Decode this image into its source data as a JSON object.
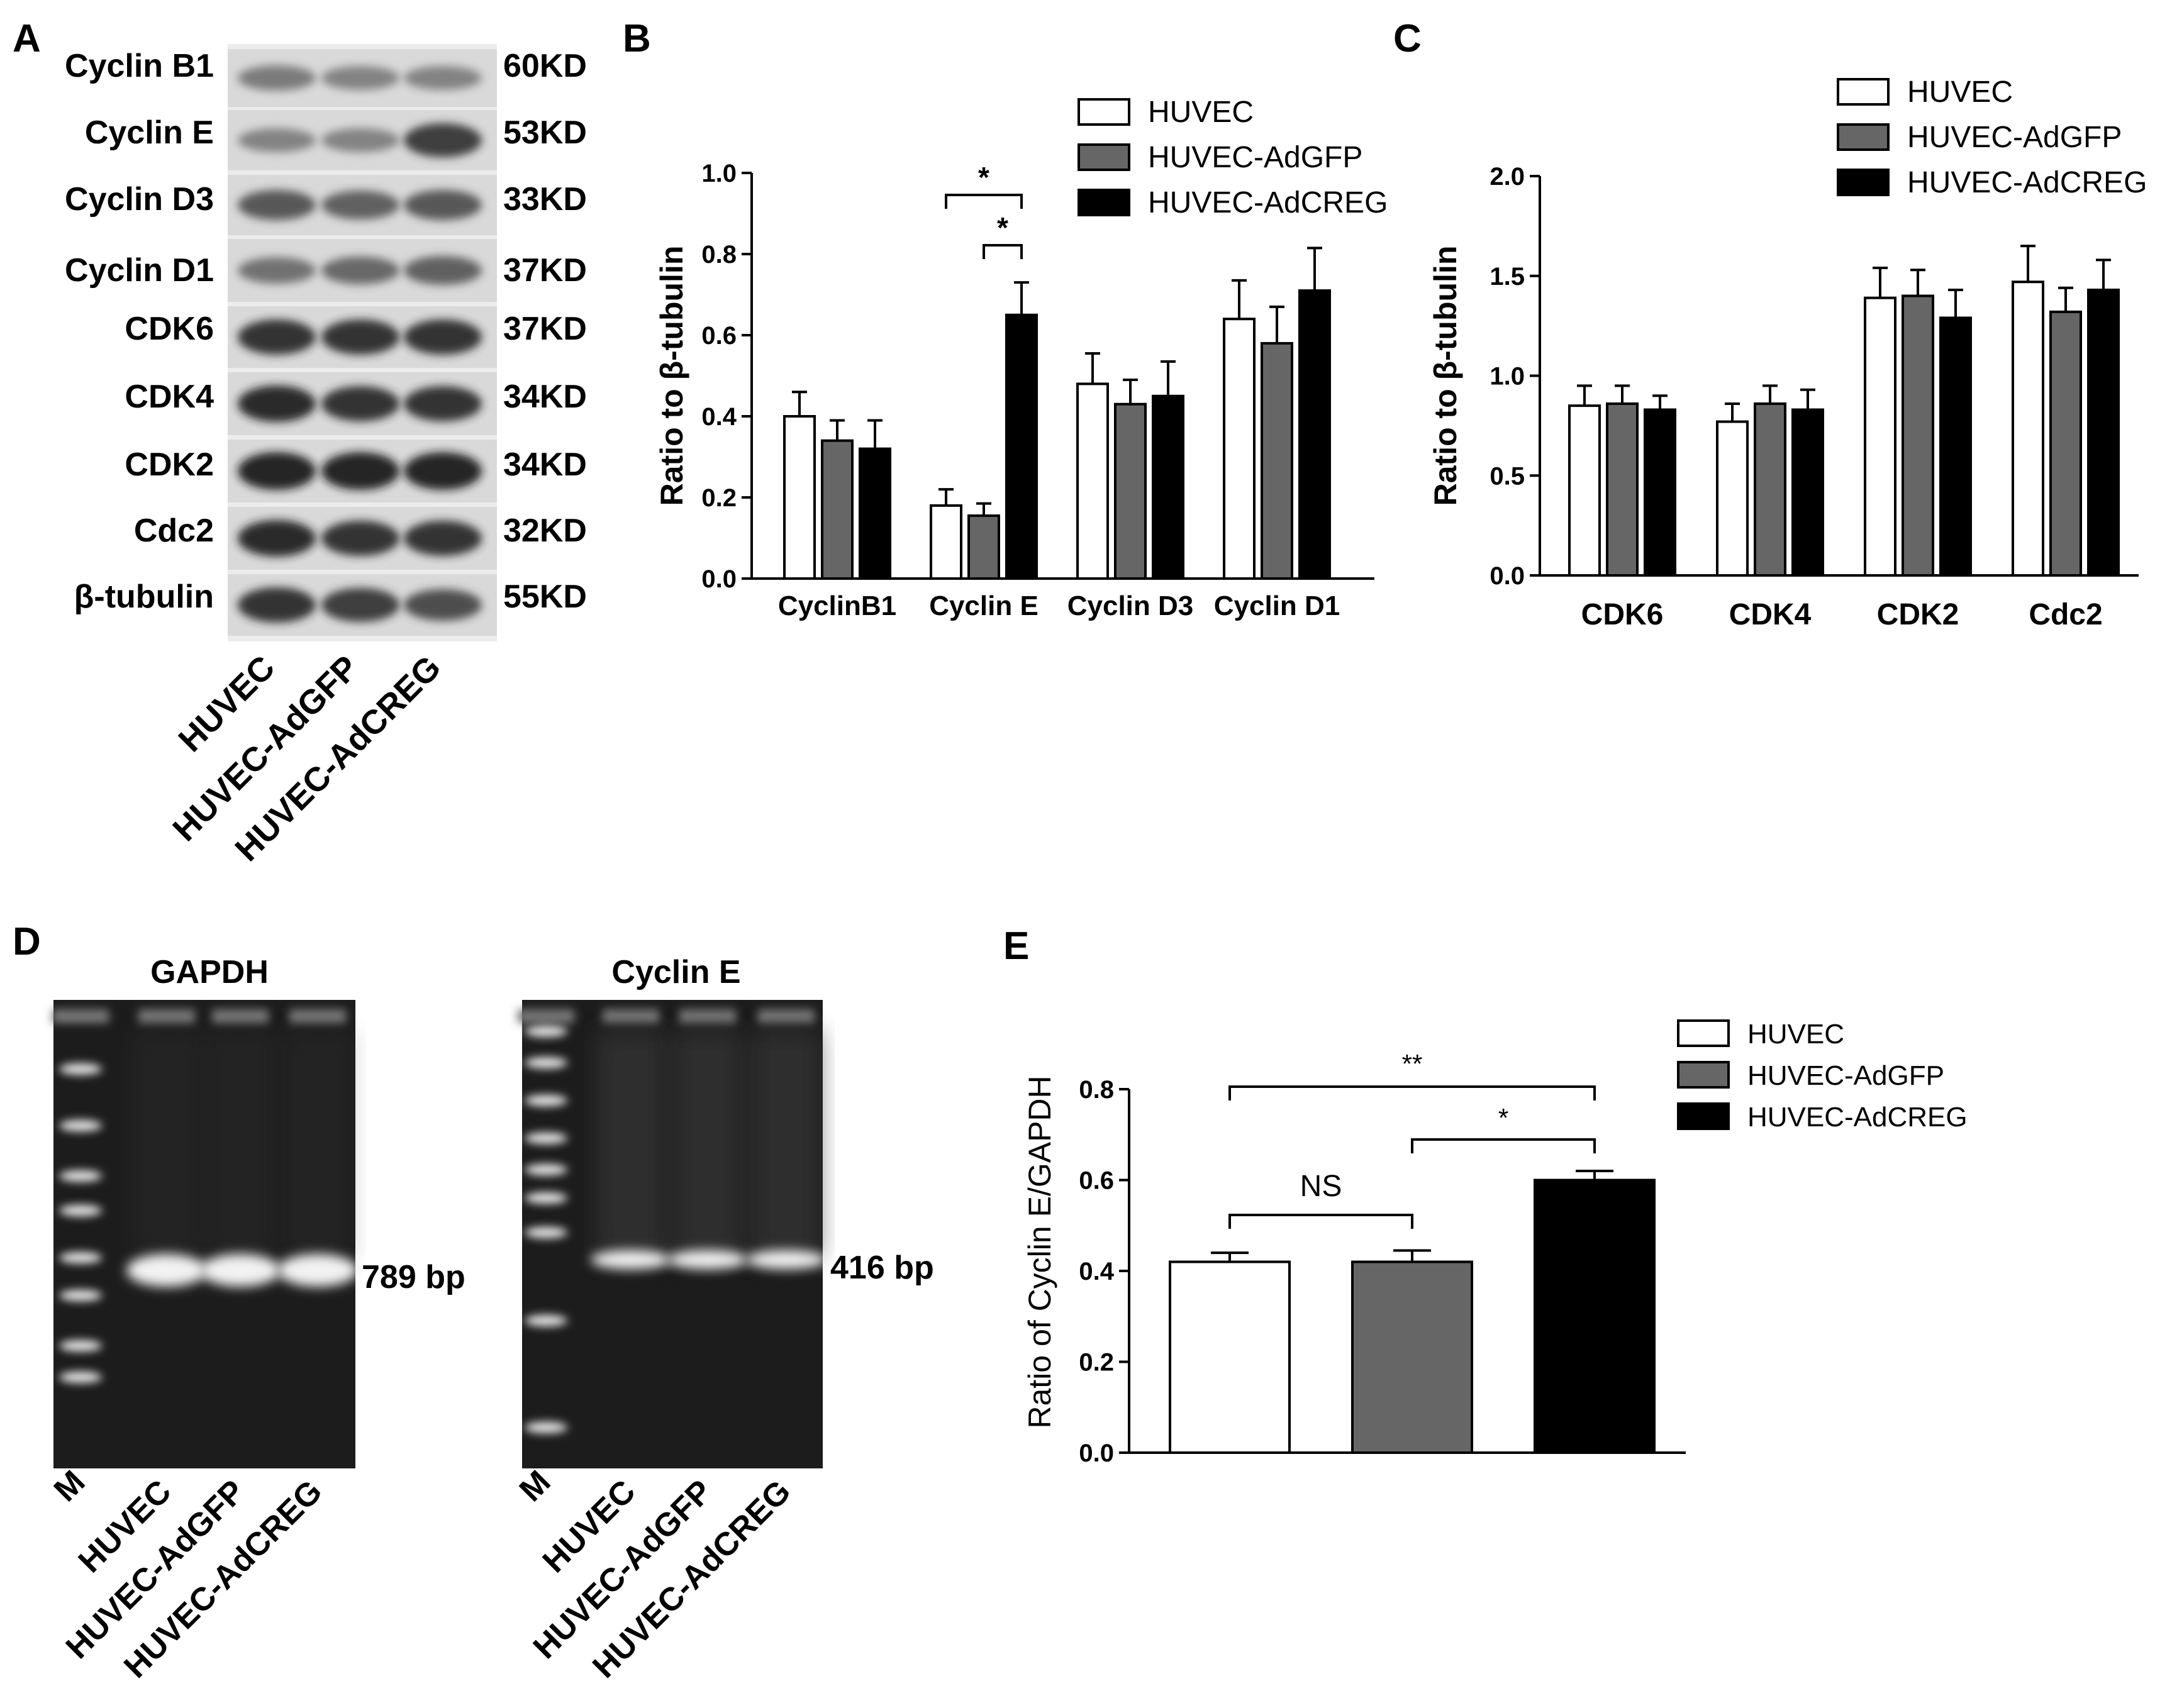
{
  "panel_labels": [
    "A",
    "B",
    "C",
    "D",
    "E"
  ],
  "colors": {
    "huvec": "#ffffff",
    "adgfp": "#666666",
    "adcreg": "#000000",
    "blot_background": "#d9d9d9",
    "gel_background": "#1c1c1c",
    "gel_band": "#f2f2f2"
  },
  "panel_a": {
    "proteins": [
      "Cyclin B1",
      "Cyclin E",
      "Cyclin D3",
      "Cyclin D1",
      "CDK6",
      "CDK4",
      "CDK2",
      "Cdc2",
      "β-tubulin"
    ],
    "sizes": [
      "60KD",
      "53KD",
      "33KD",
      "37KD",
      "37KD",
      "34KD",
      "34KD",
      "32KD",
      "55KD"
    ],
    "band_intensity": [
      [
        0.45,
        0.4,
        0.4
      ],
      [
        0.4,
        0.4,
        0.8
      ],
      [
        0.65,
        0.6,
        0.65
      ],
      [
        0.5,
        0.55,
        0.6
      ],
      [
        0.85,
        0.85,
        0.85
      ],
      [
        0.9,
        0.85,
        0.85
      ],
      [
        0.95,
        0.95,
        0.95
      ],
      [
        0.9,
        0.85,
        0.85
      ],
      [
        0.85,
        0.8,
        0.7
      ]
    ],
    "lanes": [
      "HUVEC",
      "HUVEC-AdGFP",
      "HUVEC-AdCREG"
    ]
  },
  "panel_d": {
    "gels": [
      {
        "title": "GAPDH",
        "size_label": "789 bp",
        "lanes": [
          "M",
          "HUVEC",
          "HUVEC-AdGFP",
          "HUVEC-AdCREG"
        ]
      },
      {
        "title": "Cyclin E",
        "size_label": "416 bp",
        "lanes": [
          "M",
          "HUVEC",
          "HUVEC-AdGFP",
          "HUVEC-AdCREG"
        ]
      }
    ]
  },
  "chart_data": [
    {
      "panel": "B",
      "type": "bar",
      "categories": [
        "CyclinB1",
        "Cyclin E",
        "Cyclin D3",
        "Cyclin D1"
      ],
      "series": [
        {
          "name": "HUVEC",
          "values": [
            0.4,
            0.18,
            0.48,
            0.64
          ],
          "errors": [
            0.06,
            0.04,
            0.075,
            0.095
          ]
        },
        {
          "name": "HUVEC-AdGFP",
          "values": [
            0.34,
            0.155,
            0.43,
            0.58
          ],
          "errors": [
            0.05,
            0.03,
            0.06,
            0.09
          ]
        },
        {
          "name": "HUVEC-AdCREG",
          "values": [
            0.32,
            0.65,
            0.45,
            0.71
          ],
          "errors": [
            0.07,
            0.08,
            0.085,
            0.105
          ]
        }
      ],
      "ylabel": "Ratio to β-tubulin",
      "xlabel": "",
      "ylim": [
        0,
        1.0
      ],
      "yticks": [
        "0.0",
        "0.2",
        "0.4",
        "0.6",
        "0.8",
        "1.0"
      ],
      "significance": [
        {
          "category": "Cyclin E",
          "from_series": 0,
          "to_series": 2,
          "label": "*"
        },
        {
          "category": "Cyclin E",
          "from_series": 1,
          "to_series": 2,
          "label": "*"
        }
      ],
      "legend_position": "top-right",
      "grid": false
    },
    {
      "panel": "C",
      "type": "bar",
      "categories": [
        "CDK6",
        "CDK4",
        "CDK2",
        "Cdc2"
      ],
      "series": [
        {
          "name": "HUVEC",
          "values": [
            0.85,
            0.77,
            1.39,
            1.47
          ],
          "errors": [
            0.1,
            0.09,
            0.15,
            0.18
          ]
        },
        {
          "name": "HUVEC-AdGFP",
          "values": [
            0.86,
            0.86,
            1.4,
            1.32
          ],
          "errors": [
            0.09,
            0.09,
            0.13,
            0.12
          ]
        },
        {
          "name": "HUVEC-AdCREG",
          "values": [
            0.83,
            0.83,
            1.29,
            1.43
          ],
          "errors": [
            0.07,
            0.1,
            0.14,
            0.15
          ]
        }
      ],
      "ylabel": "Ratio to β-tubulin",
      "xlabel": "",
      "ylim": [
        0,
        2.0
      ],
      "yticks": [
        "0.0",
        "0.5",
        "1.0",
        "1.5",
        "2.0"
      ],
      "legend_position": "top-right",
      "grid": false
    },
    {
      "panel": "E",
      "type": "bar",
      "categories": [
        "HUVEC",
        "HUVEC-AdGFP",
        "HUVEC-AdCREG"
      ],
      "values": [
        0.42,
        0.42,
        0.6
      ],
      "errors": [
        0.02,
        0.025,
        0.02
      ],
      "series_names": [
        "HUVEC",
        "HUVEC-AdGFP",
        "HUVEC-AdCREG"
      ],
      "ylabel": "Ratio of Cyclin E/GAPDH",
      "xlabel": "",
      "ylim": [
        0,
        0.8
      ],
      "yticks": [
        "0.0",
        "0.2",
        "0.4",
        "0.6",
        "0.8"
      ],
      "significance": [
        {
          "from": 0,
          "to": 2,
          "label": "**"
        },
        {
          "from": 1,
          "to": 2,
          "label": "*"
        },
        {
          "from": 0,
          "to": 1,
          "label": "NS"
        }
      ],
      "legend_position": "top-right",
      "grid": false
    }
  ]
}
